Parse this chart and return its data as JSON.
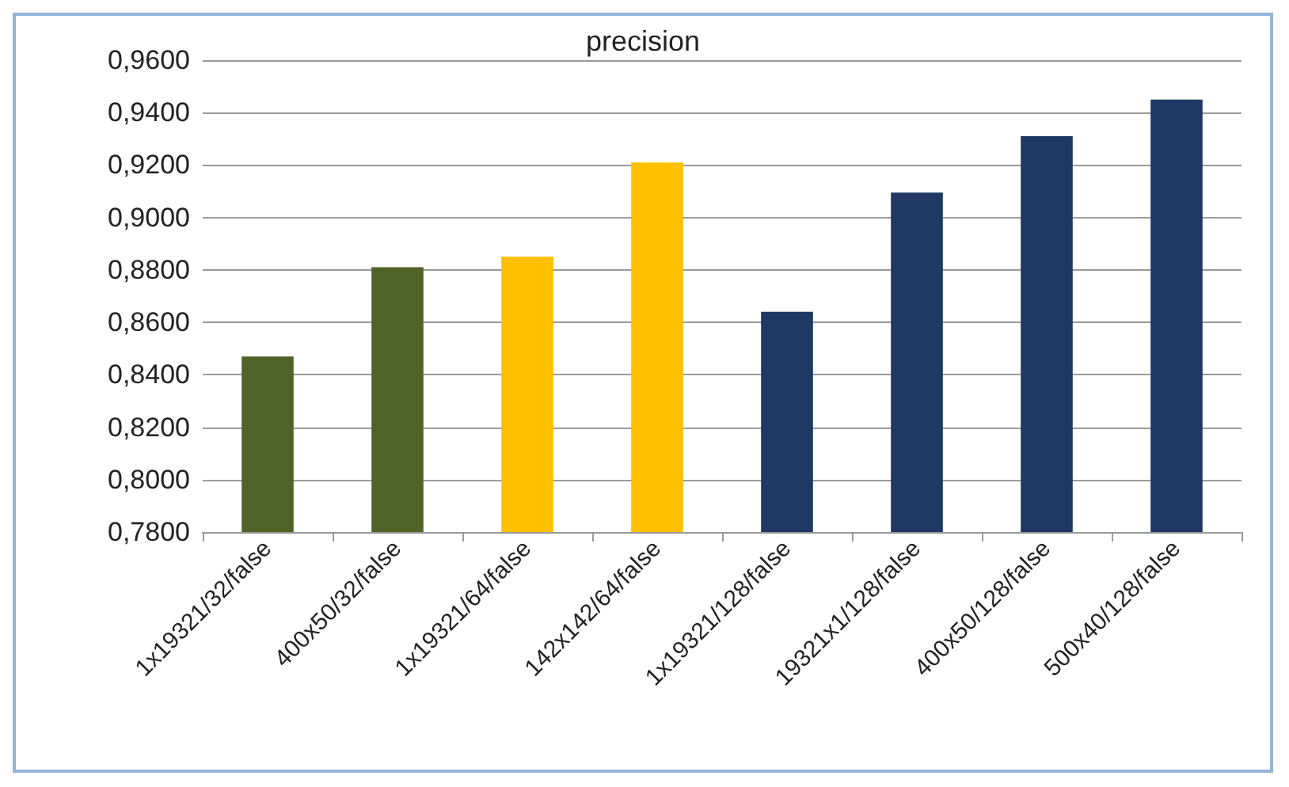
{
  "chart_data": {
    "type": "bar",
    "title": "precision",
    "categories": [
      "1x19321/32/false",
      "400x50/32/false",
      "1x19321/64/false",
      "142x142/64/false",
      "1x19321/128/false",
      "19321x1/128/false",
      "400x50/128/false",
      "500x40/128/false"
    ],
    "values": [
      0.847,
      0.881,
      0.885,
      0.921,
      0.864,
      0.9095,
      0.931,
      0.945
    ],
    "colors": [
      "#4f6228",
      "#4f6228",
      "#ffc000",
      "#ffc000",
      "#1f3864",
      "#1f3864",
      "#1f3864",
      "#1f3864"
    ],
    "ylim": [
      0.78,
      0.96
    ],
    "yticks": [
      {
        "value": 0.78,
        "label": "0,7800"
      },
      {
        "value": 0.8,
        "label": "0,8000"
      },
      {
        "value": 0.82,
        "label": "0,8200"
      },
      {
        "value": 0.84,
        "label": "0,8400"
      },
      {
        "value": 0.86,
        "label": "0,8600"
      },
      {
        "value": 0.88,
        "label": "0,8800"
      },
      {
        "value": 0.9,
        "label": "0,9000"
      },
      {
        "value": 0.92,
        "label": "0,9200"
      },
      {
        "value": 0.94,
        "label": "0,9400"
      },
      {
        "value": 0.96,
        "label": "0,9600"
      }
    ],
    "grid": "y"
  }
}
